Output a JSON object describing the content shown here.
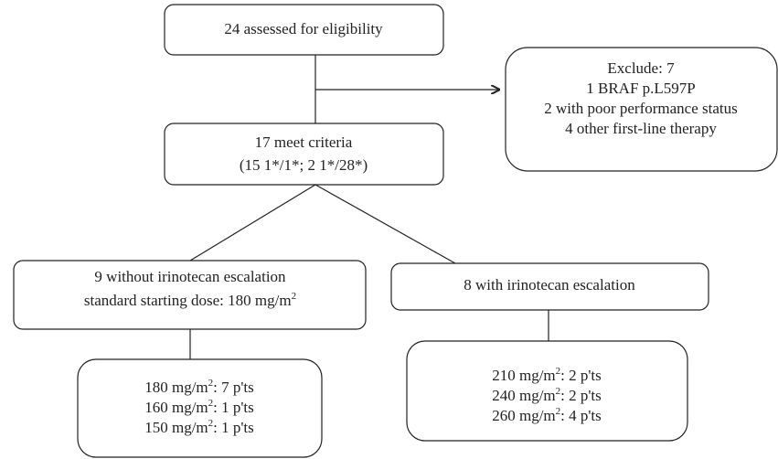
{
  "nodes": [
    {
      "lines": [
        {
          "text": "24 assessed for eligibility"
        }
      ]
    },
    {
      "lines": [
        {
          "text": "Exclude: 7"
        },
        {
          "text": "1 BRAF p.L597P"
        },
        {
          "text": "2 with poor performance status"
        },
        {
          "text": "4 other first-line therapy"
        }
      ]
    },
    {
      "lines": [
        {
          "text": "17 meet criteria"
        },
        {
          "text": "(15 1*/1*; 2 1*/28*)"
        }
      ]
    },
    {
      "lines": [
        {
          "text": "9 without irinotecan escalation"
        },
        {
          "text": "standard starting dose: 180 mg/m",
          "sup": "2"
        }
      ]
    },
    {
      "lines": [
        {
          "text": "8 with irinotecan escalation"
        }
      ]
    },
    {
      "lines": [
        {
          "text": "180 mg/m",
          "sup": "2",
          "after": ": 7 p'ts"
        },
        {
          "text": "160 mg/m",
          "sup": "2",
          "after": ": 1 p'ts"
        },
        {
          "text": "150 mg/m",
          "sup": "2",
          "after": ": 1 p'ts"
        }
      ]
    },
    {
      "lines": [
        {
          "text": "210 mg/m",
          "sup": "2",
          "after": ": 2 p'ts"
        },
        {
          "text": "240 mg/m",
          "sup": "2",
          "after": ": 2 p'ts"
        },
        {
          "text": "260 mg/m",
          "sup": "2",
          "after": ": 4 p'ts"
        }
      ]
    }
  ]
}
